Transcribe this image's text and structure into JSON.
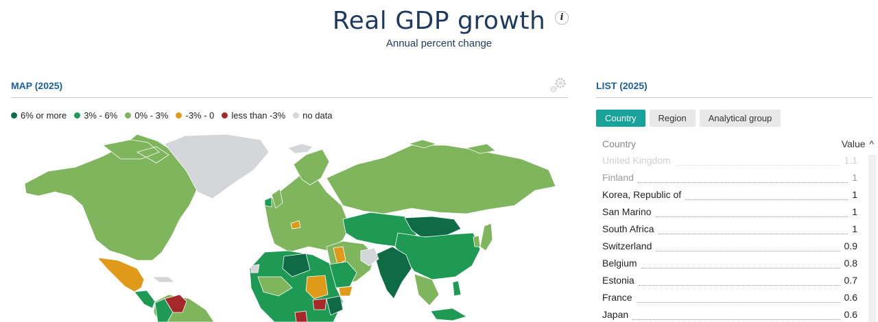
{
  "header": {
    "title": "Real GDP growth",
    "subtitle": "Annual percent change",
    "info_glyph": "i"
  },
  "map_panel": {
    "title": "MAP (2025)",
    "legend": [
      {
        "label": "6% or more",
        "color": "#0e6b46"
      },
      {
        "label": "3% - 6%",
        "color": "#1e9a55"
      },
      {
        "label": "0% - 3%",
        "color": "#7fb55c"
      },
      {
        "label": "-3% - 0",
        "color": "#e09a1a"
      },
      {
        "label": "less than -3%",
        "color": "#a5282b"
      },
      {
        "label": "no data",
        "color": "#d4d6d9"
      }
    ],
    "settings_icon": "gear-icon"
  },
  "list_panel": {
    "title": "LIST (2025)",
    "tabs": [
      {
        "label": "Country",
        "active": true
      },
      {
        "label": "Region",
        "active": false
      },
      {
        "label": "Analytical group",
        "active": false
      }
    ],
    "column_country": "Country",
    "column_value": "Value",
    "sort_icon": "chevron-up-icon",
    "sort_glyph": "^",
    "rows": [
      {
        "name": "United Kingdom",
        "value": "1.1"
      },
      {
        "name": "Finland",
        "value": "1"
      },
      {
        "name": "Korea, Republic of",
        "value": "1"
      },
      {
        "name": "San Marino",
        "value": "1"
      },
      {
        "name": "South Africa",
        "value": "1"
      },
      {
        "name": "Switzerland",
        "value": "0.9"
      },
      {
        "name": "Belgium",
        "value": "0.8"
      },
      {
        "name": "Estonia",
        "value": "0.7"
      },
      {
        "name": "France",
        "value": "0.6"
      },
      {
        "name": "Japan",
        "value": "0.6"
      }
    ]
  }
}
